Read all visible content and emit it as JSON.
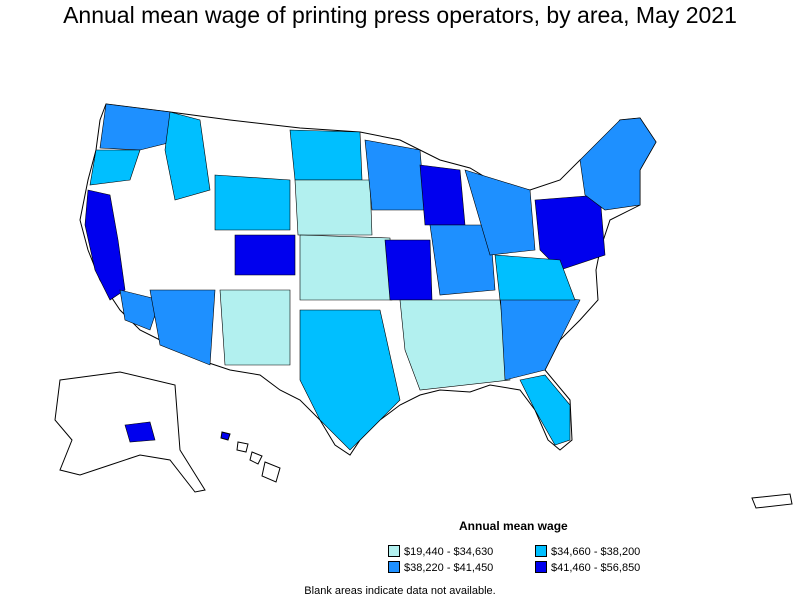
{
  "title": "Annual mean wage of printing press operators, by area, May 2021",
  "legend": {
    "title": "Annual mean wage",
    "items": [
      {
        "label": "$19,440 - $34,630",
        "color": "#b2f0ef"
      },
      {
        "label": "$34,660 - $38,200",
        "color": "#00bfff"
      },
      {
        "label": "$38,220 - $41,450",
        "color": "#1e90ff"
      },
      {
        "label": "$41,460 - $56,850",
        "color": "#0000ee"
      }
    ]
  },
  "footnote": "Blank areas indicate data not available."
}
